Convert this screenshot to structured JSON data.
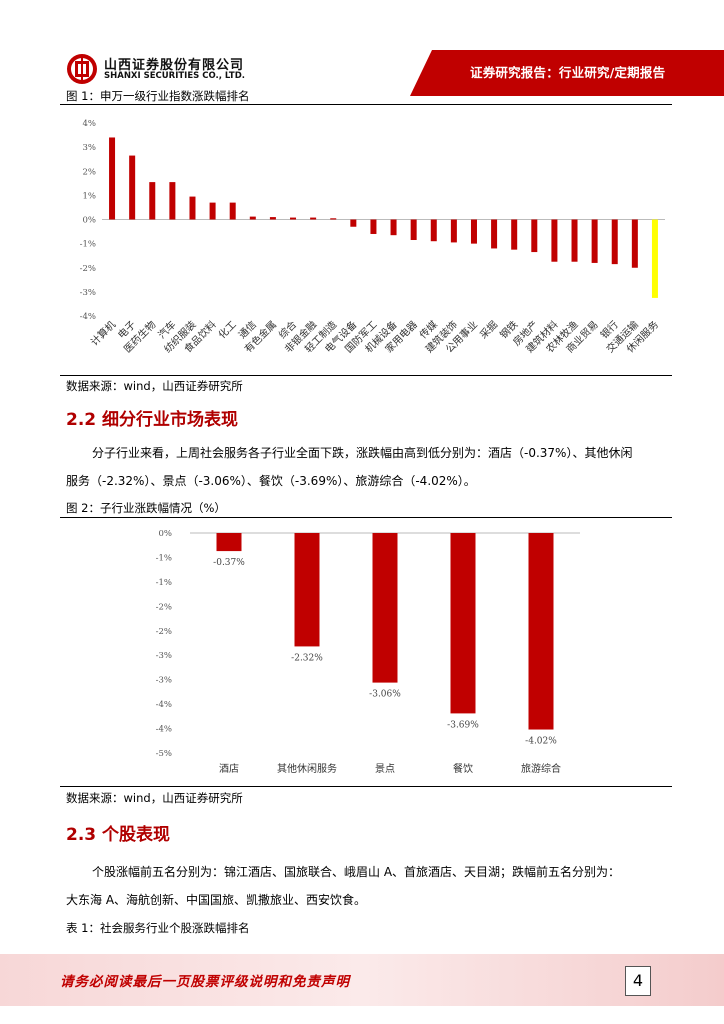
{
  "header": {
    "company_cn": "山西证券股份有限公司",
    "company_en": "SHANXI SECURITIES CO., LTD.",
    "report_type": "证券研究报告：行业研究/定期报告",
    "accent_color": "#c00000"
  },
  "figure1": {
    "caption": "图 1：申万一级行业指数涨跌幅排名",
    "source": "数据来源：wind，山西证券研究所"
  },
  "section22": {
    "title": "2.2 细分行业市场表现",
    "para_line1": "分子行业来看，上周社会服务各子行业全面下跌，涨跌幅由高到低分别为：酒店（-0.37%）、其他休闲",
    "para_line2": "服务（-2.32%）、景点（-3.06%）、餐饮（-3.69%）、旅游综合（-4.02%）。"
  },
  "figure2": {
    "caption": "图 2：子行业涨跌幅情况（%）",
    "source": "数据来源：wind，山西证券研究所"
  },
  "section23": {
    "title": "2.3 个股表现",
    "para_line1": "个股涨幅前五名分别为：锦江酒店、国旅联合、峨眉山 A、首旅酒店、天目湖；跌幅前五名分别为：",
    "para_line2": "大东海 A、海航创新、中国国旅、凯撒旅业、西安饮食。"
  },
  "table1": {
    "caption": "表 1：社会服务行业个股涨跌幅排名"
  },
  "footer": {
    "disclaimer": "请务必阅读最后一页股票评级说明和免责声明",
    "page_number": "4"
  },
  "chart_data": [
    {
      "type": "bar",
      "categories": [
        "计算机",
        "电子",
        "医药生物",
        "汽车",
        "纺织服装",
        "食品饮料",
        "化工",
        "通信",
        "有色金属",
        "综合",
        "非银金融",
        "轻工制造",
        "电气设备",
        "国防军工",
        "机械设备",
        "家用电器",
        "传媒",
        "建筑装饰",
        "公用事业",
        "采掘",
        "钢铁",
        "房地产",
        "建筑材料",
        "农林牧渔",
        "商业贸易",
        "银行",
        "交通运输",
        "休闲服务"
      ],
      "values": [
        3.4,
        2.65,
        1.55,
        1.55,
        0.95,
        0.7,
        0.7,
        0.12,
        0.1,
        0.08,
        0.08,
        0.05,
        -0.3,
        -0.6,
        -0.65,
        -0.85,
        -0.9,
        -0.95,
        -1.0,
        -1.2,
        -1.25,
        -1.35,
        -1.75,
        -1.75,
        -1.8,
        -1.85,
        -2.0,
        -3.25
      ],
      "highlight_category": "休闲服务",
      "ytick_labels": [
        "4%",
        "3%",
        "2%",
        "1%",
        "0%",
        "-1%",
        "-2%",
        "-3%",
        "-4%"
      ],
      "ylim": [
        -4,
        4
      ],
      "colors": {
        "bar": "#c00000",
        "highlight": "#ffff00"
      }
    },
    {
      "type": "bar",
      "categories": [
        "酒店",
        "其他休闲服务",
        "景点",
        "餐饮",
        "旅游综合"
      ],
      "values": [
        -0.37,
        -2.32,
        -3.06,
        -3.69,
        -4.02
      ],
      "data_labels": [
        "-0.37%",
        "-2.32%",
        "-3.06%",
        "-3.69%",
        "-4.02%"
      ],
      "ytick_labels": [
        "0%",
        "-1%",
        "-1%",
        "-2%",
        "-2%",
        "-3%",
        "-3%",
        "-4%",
        "-4%",
        "-5%"
      ],
      "ylim": [
        -4.5,
        0
      ],
      "colors": {
        "bar": "#c00000"
      }
    }
  ]
}
